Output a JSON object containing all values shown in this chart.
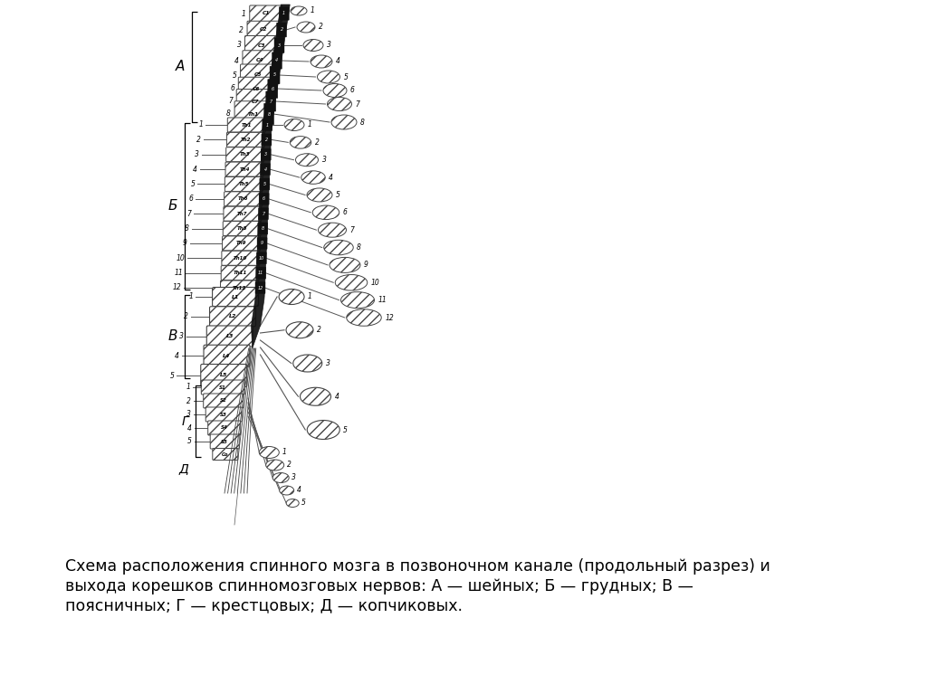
{
  "background_color": "#ffffff",
  "caption_line1": "Схема расположения спинного мозга в позвоночном канале (продольный разрез) и",
  "caption_line2": "выхода корешков спинномозговых нервов: А — шейных; Б — грудных; В —",
  "caption_line3": "поясничных; Г — крестцовых; Д — копчиковых.",
  "fig_width": 10.24,
  "fig_height": 7.67
}
